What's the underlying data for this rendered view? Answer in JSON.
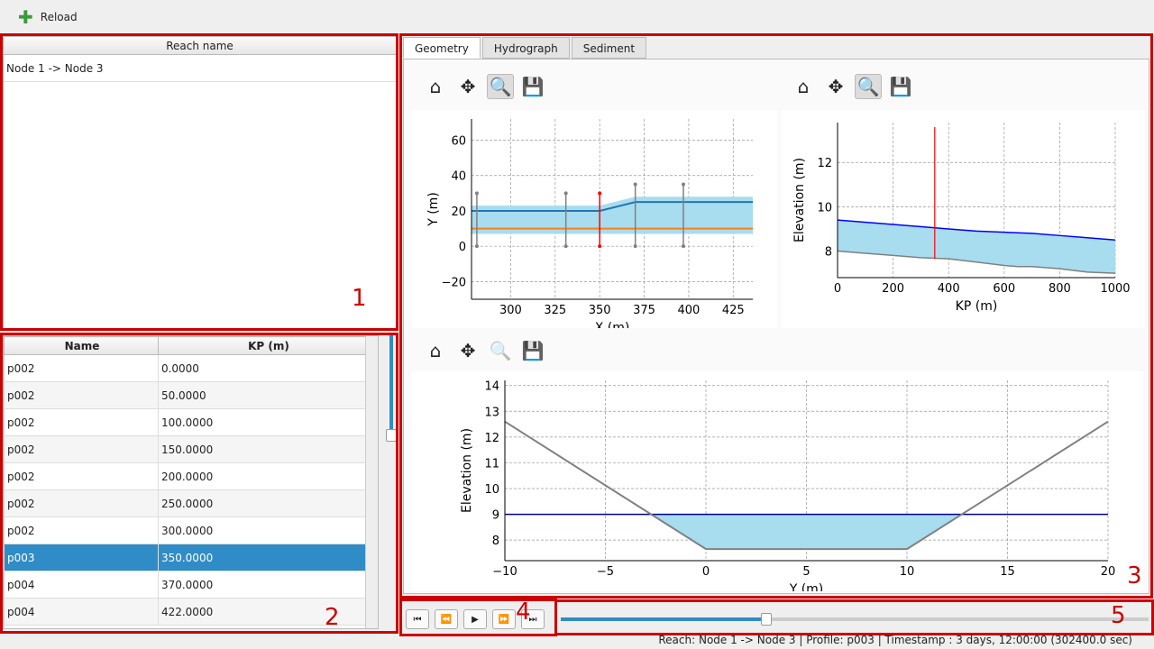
{
  "toolbar": {
    "reload_label": "Reload",
    "add_icon": "plus-icon"
  },
  "reach_list": {
    "header": "Reach name",
    "items": [
      "Node 1 -> Node 3"
    ]
  },
  "profiles": {
    "headers": [
      "Name",
      "KP (m)"
    ],
    "rows": [
      [
        "p002",
        "0.0000"
      ],
      [
        "p002",
        "50.0000"
      ],
      [
        "p002",
        "100.0000"
      ],
      [
        "p002",
        "150.0000"
      ],
      [
        "p002",
        "200.0000"
      ],
      [
        "p002",
        "250.0000"
      ],
      [
        "p002",
        "300.0000"
      ],
      [
        "p003",
        "350.0000"
      ],
      [
        "p004",
        "370.0000"
      ],
      [
        "p004",
        "422.0000"
      ]
    ],
    "selected_index": 7
  },
  "tabs": [
    "Geometry",
    "Hydrograph",
    "Sediment"
  ],
  "active_tab": "Geometry",
  "region_labels": [
    "1",
    "2",
    "3",
    "4",
    "5"
  ],
  "status": "Reach: Node 1 -> Node 3 | Profile: p003 | Timestamp : 3 days, 12:00:00 (302400.0 sec)",
  "timeline": {
    "position_percent": 35
  },
  "chart_data": [
    {
      "type": "line",
      "title": "",
      "xlabel": "X (m)",
      "ylabel": "Y (m)",
      "xlim": [
        278,
        436
      ],
      "ylim": [
        -30,
        72
      ],
      "xticks": [
        300,
        325,
        350,
        375,
        400,
        425
      ],
      "yticks": [
        -20,
        0,
        20,
        40,
        60
      ],
      "grid": true,
      "series": [
        {
          "x": [
            278,
            350,
            370,
            436
          ],
          "y": [
            20,
            20,
            25,
            25
          ],
          "color": "#1f77b4"
        },
        {
          "x": [
            278,
            436
          ],
          "y": [
            10,
            10
          ],
          "color": "#ff7f0e"
        }
      ],
      "band": {
        "x": [
          278,
          350,
          370,
          436
        ],
        "low": [
          7,
          7,
          7,
          7
        ],
        "high": [
          23,
          23,
          28,
          28
        ],
        "color": "#a8dcef"
      },
      "profiles": [
        {
          "x": 281,
          "y": [
            0,
            30
          ]
        },
        {
          "x": 331,
          "y": [
            0,
            30
          ]
        },
        {
          "x": 350,
          "y": [
            0,
            30
          ],
          "selected": true
        },
        {
          "x": 370,
          "y": [
            0,
            35
          ]
        },
        {
          "x": 397,
          "y": [
            0,
            35
          ]
        }
      ]
    },
    {
      "type": "area",
      "title": "",
      "xlabel": "KP (m)",
      "ylabel": "Elevation (m)",
      "xlim": [
        0,
        1000
      ],
      "ylim": [
        6.8,
        13.8
      ],
      "xticks": [
        0,
        200,
        400,
        600,
        800,
        1000
      ],
      "yticks": [
        8,
        10,
        12
      ],
      "grid": true,
      "water": {
        "x": [
          0,
          200,
          400,
          500,
          600,
          700,
          800,
          900,
          1000
        ],
        "y": [
          9.4,
          9.2,
          9.0,
          8.9,
          8.85,
          8.8,
          8.7,
          8.6,
          8.5
        ],
        "color": "#0000ff"
      },
      "bed": {
        "x": [
          0,
          100,
          200,
          300,
          400,
          500,
          600,
          650,
          700,
          800,
          900,
          1000
        ],
        "y": [
          8.0,
          7.9,
          7.8,
          7.7,
          7.65,
          7.5,
          7.35,
          7.3,
          7.3,
          7.2,
          7.05,
          7.0
        ],
        "color": "#808080"
      },
      "marker_kp": 350
    },
    {
      "type": "area",
      "title": "",
      "xlabel": "Y (m)",
      "ylabel": "Elevation (m)",
      "xlim": [
        -10,
        20
      ],
      "ylim": [
        7.2,
        14.2
      ],
      "xticks": [
        -10,
        -5,
        0,
        5,
        10,
        15,
        20
      ],
      "yticks": [
        8,
        9,
        10,
        11,
        12,
        13,
        14
      ],
      "grid": true,
      "bed": {
        "x": [
          -10,
          0,
          10,
          20
        ],
        "y": [
          12.6,
          7.65,
          7.65,
          12.6
        ],
        "color": "#808080"
      },
      "water_level": 9,
      "water_color": "#00008b"
    }
  ]
}
